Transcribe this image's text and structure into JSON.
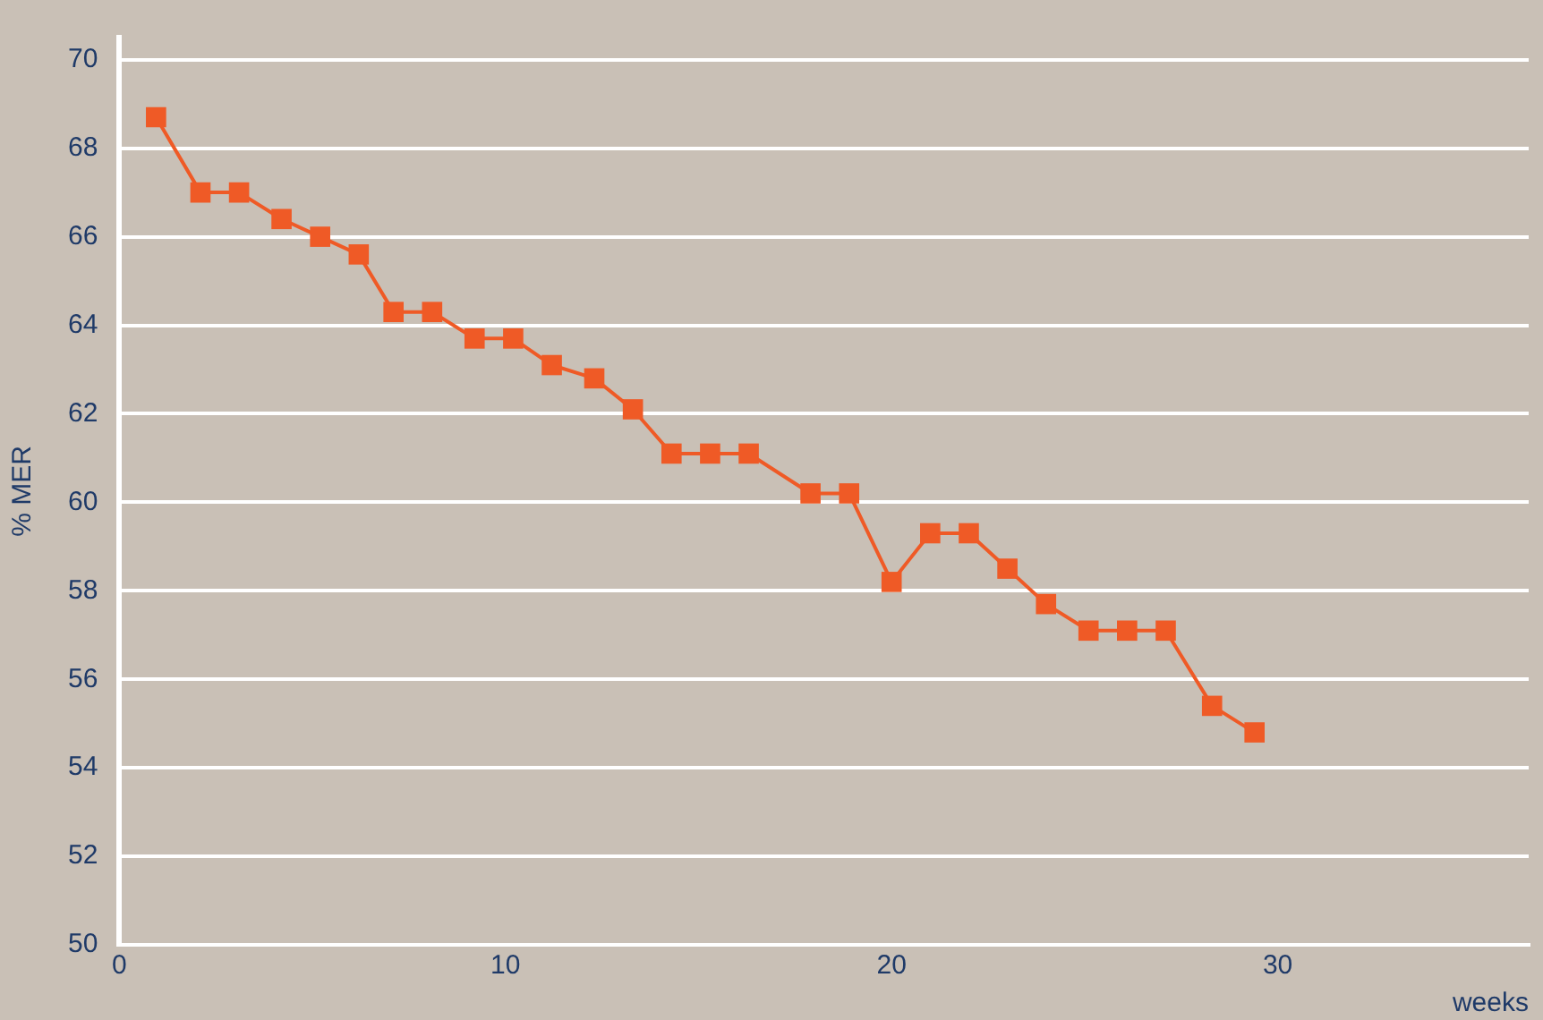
{
  "chart_data": {
    "type": "line",
    "xlabel": "weeks",
    "ylabel": "% MER",
    "x": [
      0.95,
      2.1,
      3.1,
      4.2,
      5.2,
      6.2,
      7.1,
      8.1,
      9.2,
      10.2,
      11.2,
      12.3,
      13.3,
      14.3,
      15.3,
      16.3,
      17.9,
      18.9,
      20.0,
      21.0,
      22.0,
      23.0,
      24.0,
      25.1,
      26.1,
      27.1,
      28.3,
      29.4
    ],
    "series": [
      {
        "color": "#ef5a26",
        "values": [
          68.7,
          67.0,
          67.0,
          66.4,
          66.0,
          65.6,
          64.3,
          64.3,
          63.7,
          63.7,
          63.1,
          62.8,
          62.1,
          61.1,
          61.1,
          61.1,
          60.2,
          60.2,
          58.2,
          59.3,
          59.3,
          58.5,
          57.7,
          57.1,
          57.1,
          57.1,
          55.4,
          54.8
        ]
      }
    ],
    "xlim": [
      0,
      36.5
    ],
    "xticks": [
      0,
      10,
      20,
      30
    ],
    "ylim": [
      50,
      70.5
    ],
    "yticks": [
      50,
      52,
      54,
      56,
      58,
      60,
      62,
      64,
      66,
      68,
      70
    ],
    "grid": "y",
    "legend": false,
    "marker": "square",
    "line_style": "solid"
  }
}
